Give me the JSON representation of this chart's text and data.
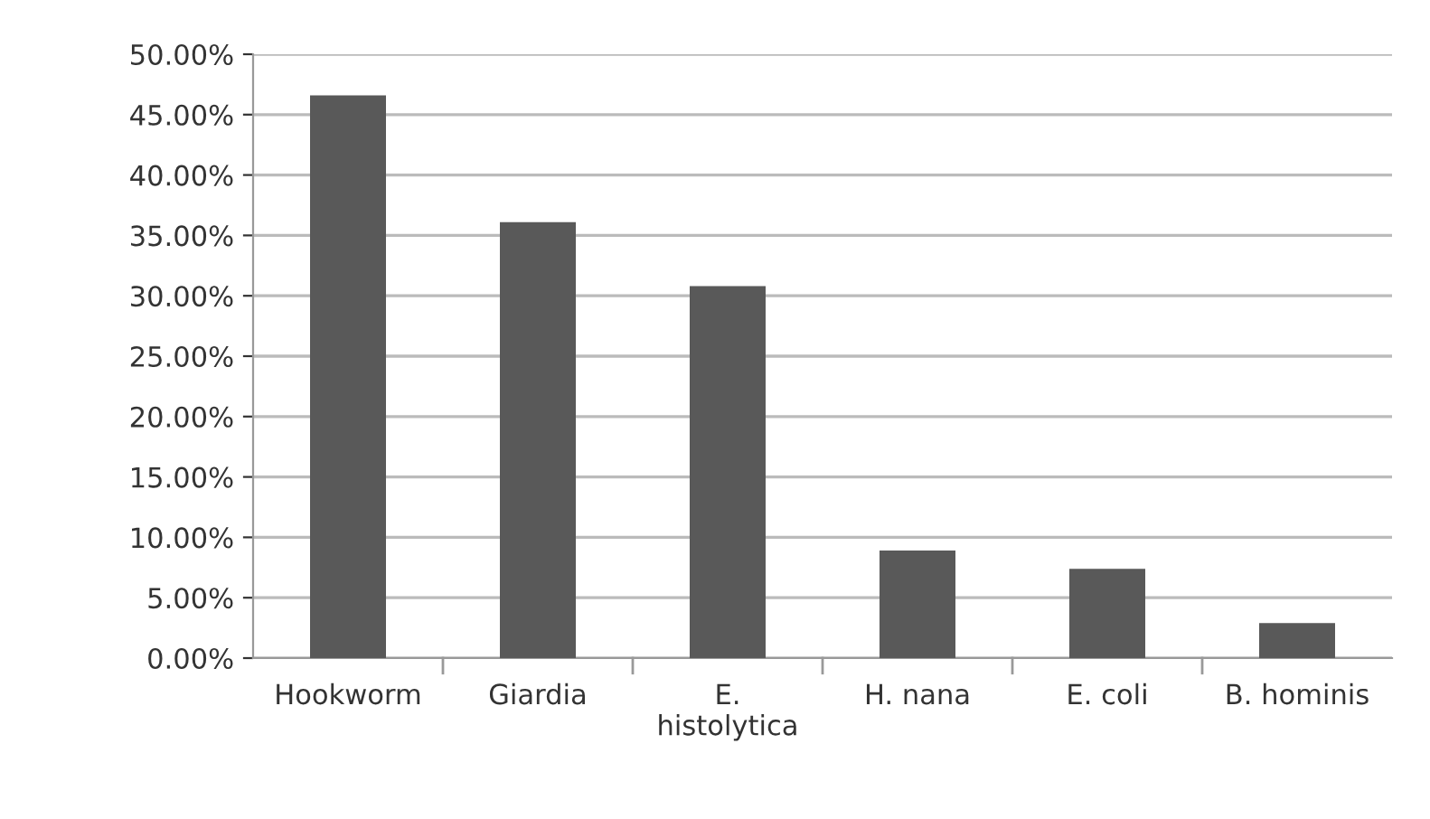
{
  "chart_data": {
    "type": "bar",
    "categories": [
      "Hookworm",
      "Giardia",
      "E.\nhistolytica",
      "H. nana",
      "E. coli",
      "B. hominis"
    ],
    "values": [
      46.6,
      36.1,
      30.8,
      8.9,
      7.4,
      2.9
    ],
    "color": "#595959",
    "ylim": [
      0,
      50
    ],
    "yticks": [
      {
        "value": 0,
        "label": "0.00%"
      },
      {
        "value": 5,
        "label": "5.00%"
      },
      {
        "value": 10,
        "label": "10.00%"
      },
      {
        "value": 15,
        "label": "15.00%"
      },
      {
        "value": 20,
        "label": "20.00%"
      },
      {
        "value": 25,
        "label": "25.00%"
      },
      {
        "value": 30,
        "label": "30.00%"
      },
      {
        "value": 35,
        "label": "35.00%"
      },
      {
        "value": 40,
        "label": "40.00%"
      },
      {
        "value": 45,
        "label": "45.00%"
      },
      {
        "value": 50,
        "label": "50.00%"
      }
    ],
    "grid": "y",
    "legend": false
  }
}
